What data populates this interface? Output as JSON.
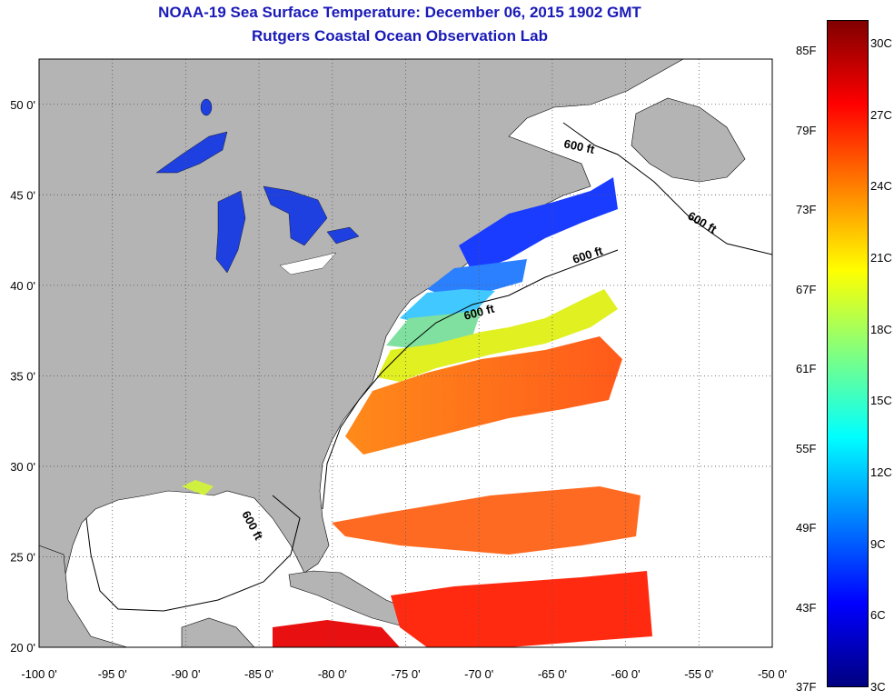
{
  "title": "NOAA-19 Sea Surface Temperature:  December 06, 2015 1902 GMT",
  "subtitle": "Rutgers Coastal Ocean Observation Lab",
  "map": {
    "lon_ticks": [
      "-100 0'",
      "-95 0'",
      "-90 0'",
      "-85 0'",
      "-80 0'",
      "-75 0'",
      "-70 0'",
      "-65 0'",
      "-60 0'",
      "-55 0'",
      "-50 0'"
    ],
    "lat_ticks": [
      "50 0'",
      "45 0'",
      "40 0'",
      "35 0'",
      "30 0'",
      "25 0'",
      "20 0'"
    ],
    "lon_range": [
      -100,
      -50
    ],
    "lat_range": [
      20,
      52.5
    ],
    "contour_label": "600 ft",
    "colors": {
      "land": "#b4b4b4",
      "water_nodata": "#ffffff",
      "grid": "#555555"
    }
  },
  "colorbar": {
    "fahrenheit": [
      "85F",
      "79F",
      "73F",
      "67F",
      "61F",
      "55F",
      "49F",
      "43F",
      "37F"
    ],
    "celsius": [
      "30C",
      "27C",
      "24C",
      "21C",
      "18C",
      "15C",
      "12C",
      "9C",
      "6C",
      "3C"
    ],
    "gradient": [
      "#800000",
      "#ff0000",
      "#ff8000",
      "#ffff00",
      "#80ff80",
      "#00ffff",
      "#0080ff",
      "#0000ff",
      "#000080"
    ]
  }
}
